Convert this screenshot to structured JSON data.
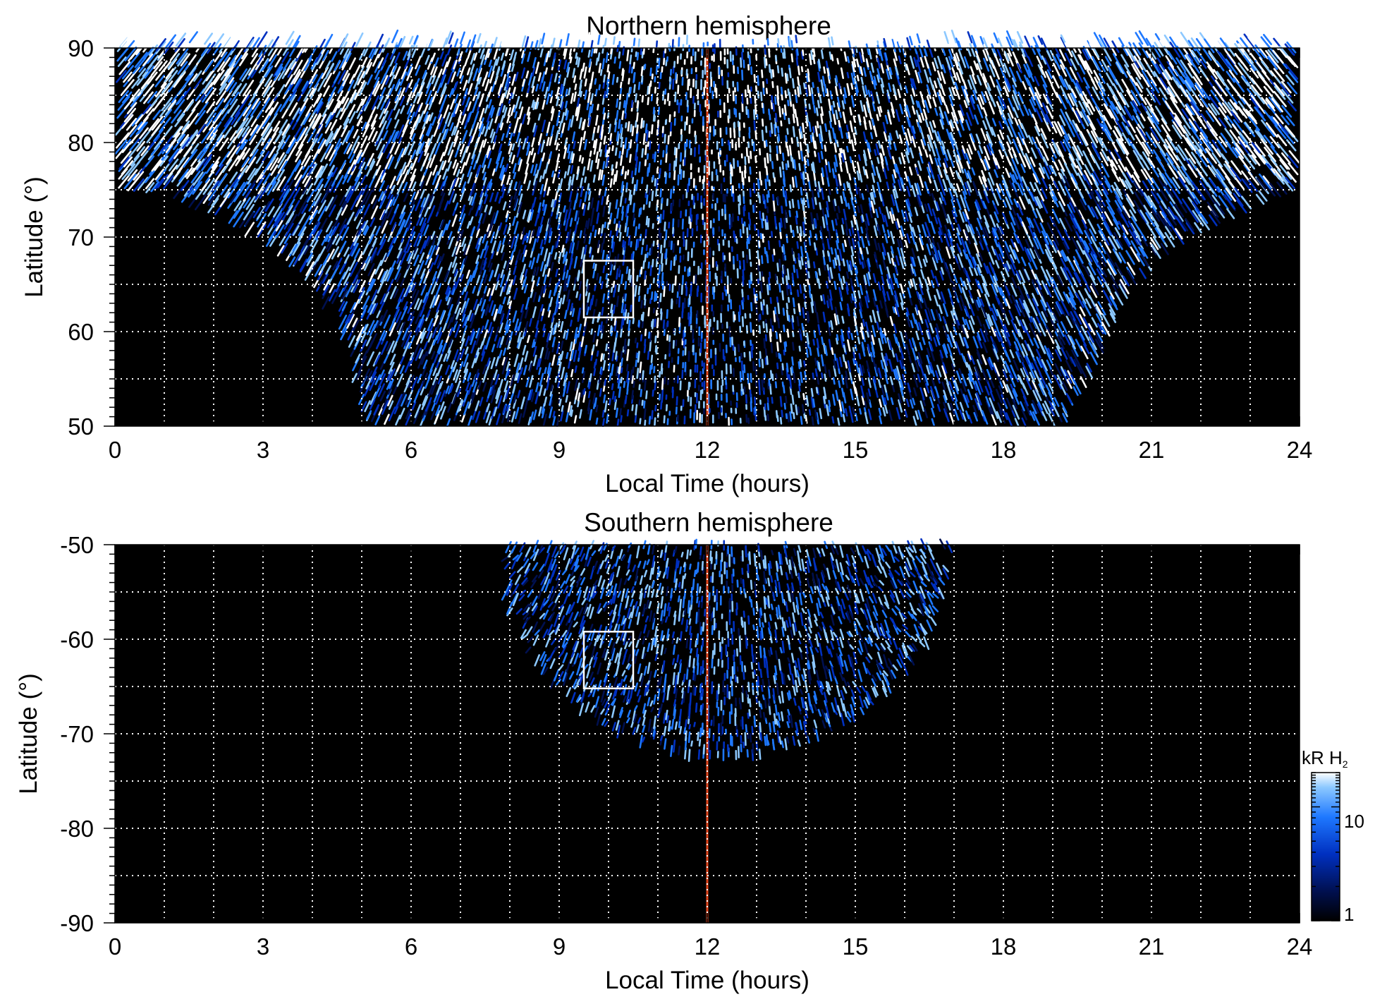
{
  "chart_data": [
    {
      "type": "heatmap",
      "title": "Northern hemisphere",
      "xlabel": "Local Time (hours)",
      "ylabel": "Latitude (°)",
      "xlim": [
        0,
        24
      ],
      "ylim": [
        50,
        90
      ],
      "xticks": [
        "0",
        "3",
        "6",
        "9",
        "12",
        "15",
        "18",
        "21",
        "24"
      ],
      "yticks": [
        "50",
        "60",
        "70",
        "80",
        "90"
      ],
      "x_minor_step": 1,
      "y_minor_step": 1,
      "grid": "dotted white, every 1 hour and every 5 degrees",
      "reference_line": {
        "x": 12,
        "color": "#e0441c"
      },
      "highlight_box": {
        "x": [
          9.5,
          10.5
        ],
        "y": [
          61.5,
          67.5
        ],
        "color": "#ffffff"
      },
      "coverage_lower_boundary": [
        [
          0,
          75
        ],
        [
          1,
          74
        ],
        [
          2,
          72
        ],
        [
          3,
          69
        ],
        [
          4,
          64.5
        ],
        [
          4.6,
          58
        ],
        [
          5,
          50
        ],
        [
          19.3,
          50
        ],
        [
          19.8,
          56
        ],
        [
          20.3,
          62
        ],
        [
          21,
          67
        ],
        [
          22,
          70.5
        ],
        [
          23,
          73
        ],
        [
          24,
          75
        ]
      ],
      "emission_range_kR": [
        1,
        20
      ],
      "background_color": "#000000"
    },
    {
      "type": "heatmap",
      "title": "Southern hemisphere",
      "xlabel": "Local Time (hours)",
      "ylabel": "Latitude (°)",
      "xlim": [
        0,
        24
      ],
      "ylim": [
        -90,
        -50
      ],
      "xticks": [
        "0",
        "3",
        "6",
        "9",
        "12",
        "15",
        "18",
        "21",
        "24"
      ],
      "yticks": [
        "-90",
        "-80",
        "-70",
        "-60",
        "-50"
      ],
      "x_minor_step": 1,
      "y_minor_step": 1,
      "grid": "dotted white, every 1 hour and every 5 degrees",
      "reference_line": {
        "x": 12,
        "color": "#e0441c"
      },
      "highlight_box": {
        "x": [
          9.5,
          10.5
        ],
        "y": [
          -65.2,
          -59.2
        ],
        "color": "#ffffff"
      },
      "coverage_region": {
        "center_x": 12.3,
        "half_width_hours": 4.5,
        "top_lat": -50,
        "bottom_lat": -72
      },
      "emission_range_kR": [
        1,
        20
      ],
      "background_color": "#000000"
    }
  ],
  "colorbar": {
    "label": "kR H₂",
    "label_main": "kR H",
    "label_sub": "2",
    "tick_labels": [
      "1",
      "10"
    ],
    "scale": "log",
    "range": [
      1,
      20
    ],
    "colors": [
      "#000000",
      "#001050",
      "#0030c0",
      "#1e78ff",
      "#8cc8ff",
      "#ffffff"
    ]
  }
}
